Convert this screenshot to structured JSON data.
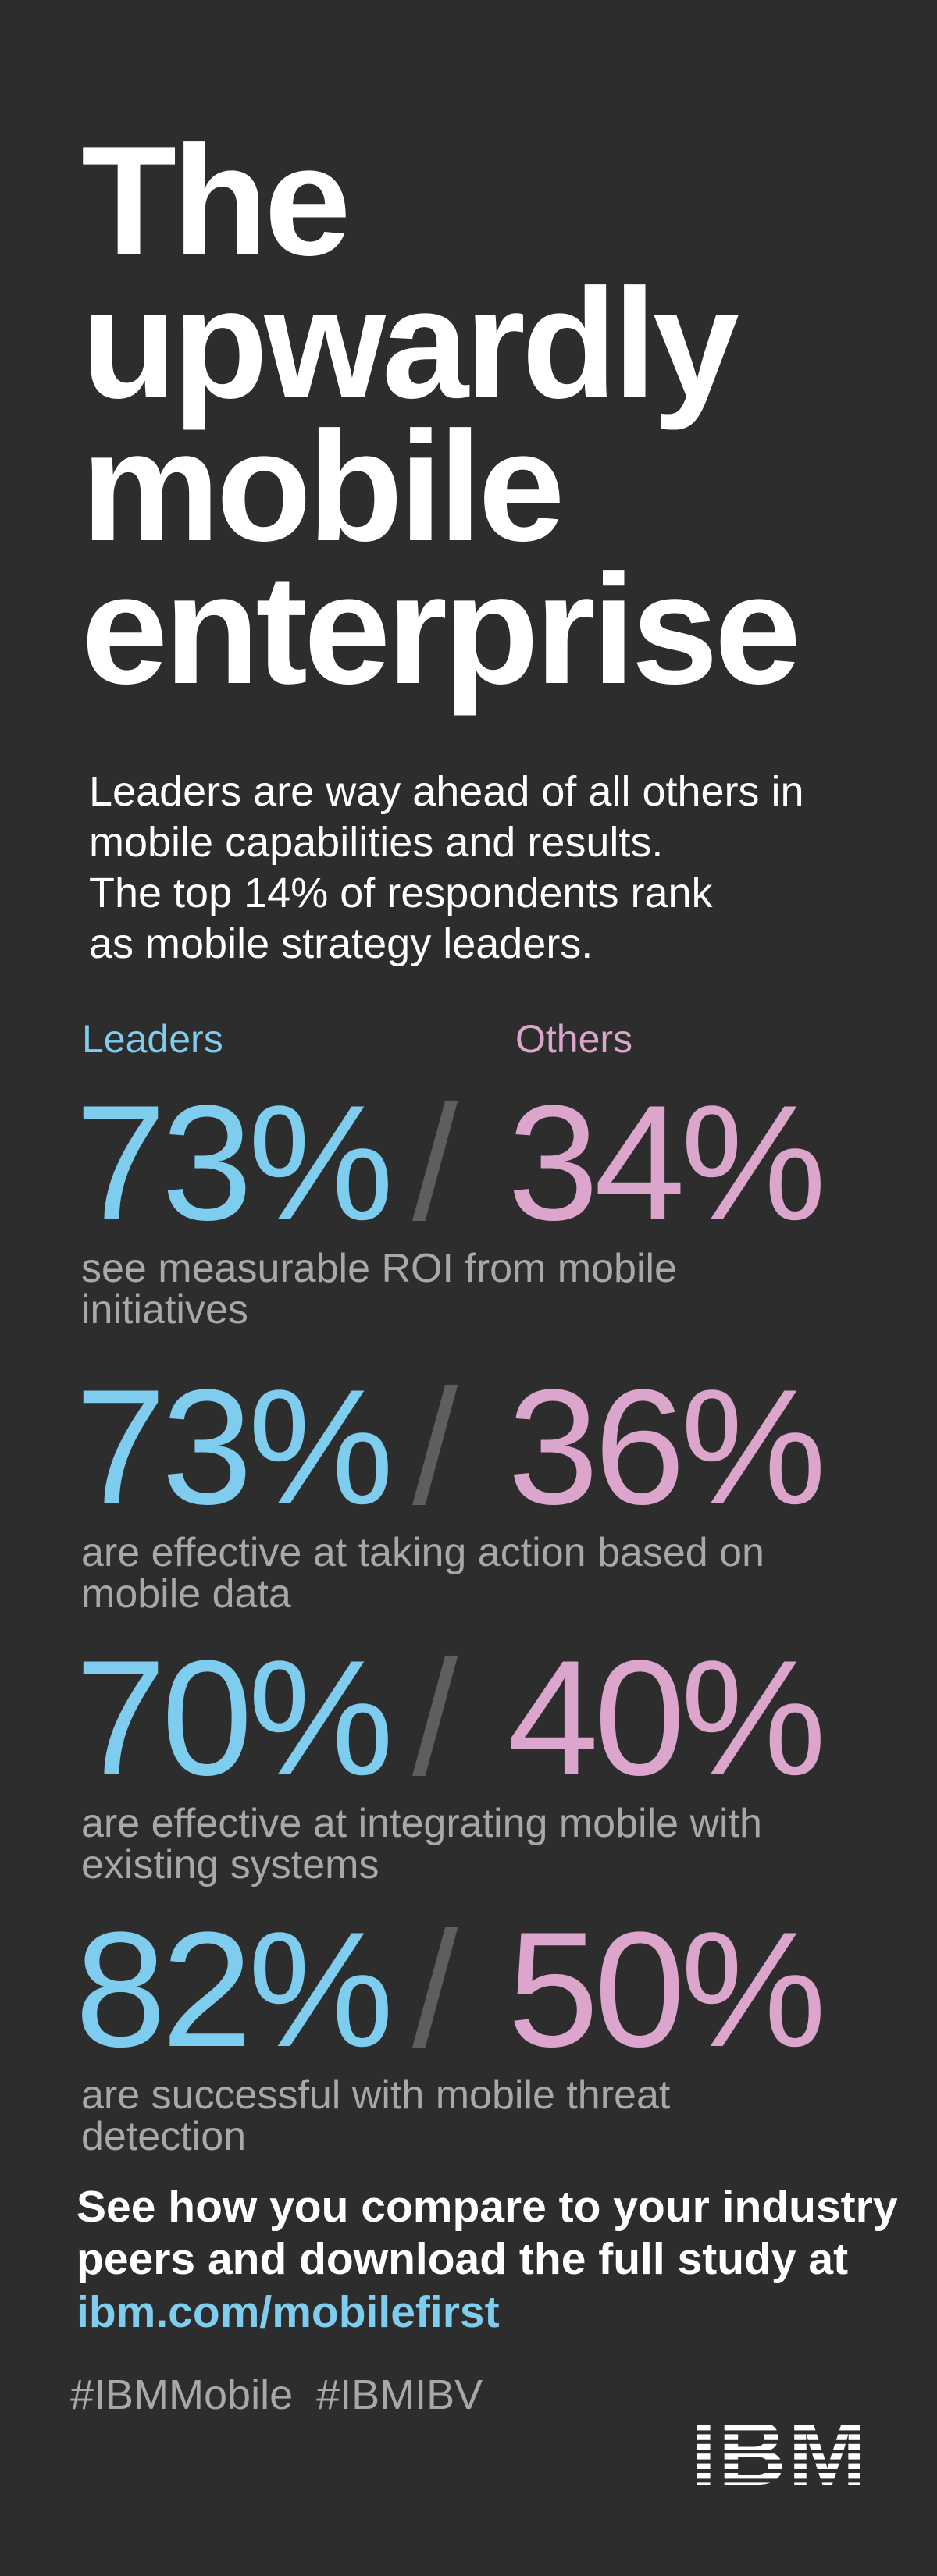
{
  "header": {
    "title": [
      "The",
      "upwardly",
      "mobile",
      "enterprise"
    ],
    "intro": [
      "Leaders are way ahead of all others in",
      "mobile capabilities and results.",
      "The top 14% of respondents rank",
      "as mobile strategy leaders."
    ]
  },
  "columns": {
    "leaders": "Leaders",
    "others": "Others",
    "separator": "/"
  },
  "stats": [
    {
      "leaders": "73%",
      "others": "34%",
      "description": [
        "see measurable ROI from mobile",
        "initiatives"
      ]
    },
    {
      "leaders": "73%",
      "others": "36%",
      "description": [
        "are effective at taking action based on",
        "mobile data"
      ]
    },
    {
      "leaders": "70%",
      "others": "40%",
      "description": [
        "are effective at integrating mobile with",
        "existing systems"
      ]
    },
    {
      "leaders": "82%",
      "others": "50%",
      "description": [
        "are successful with mobile threat",
        "detection"
      ]
    }
  ],
  "footer": {
    "cta": [
      "See how you compare to your industry",
      "peers and download the full study at"
    ],
    "link": "ibm.com/mobilefirst",
    "hashtags": "#IBMMobile  #IBMIBV",
    "logo": "IBM"
  }
}
